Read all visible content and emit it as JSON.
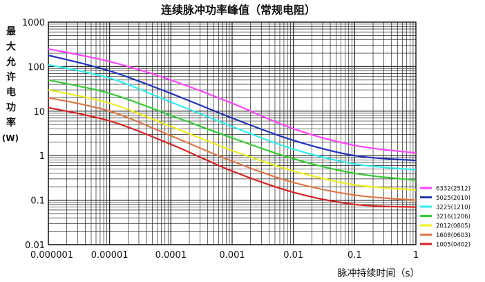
{
  "chart_data": {
    "type": "line",
    "title": "连续脉冲功率峰值（常规电阻）",
    "xlabel": "脉冲持续时间（s）",
    "ylabel_chars": [
      "最",
      "大",
      "允",
      "许",
      "电",
      "功",
      "率",
      "(W)"
    ],
    "x_scale": "log",
    "y_scale": "log",
    "xlim": [
      1e-06,
      1
    ],
    "ylim": [
      0.01,
      1000
    ],
    "x_ticks": [
      {
        "value": 1e-06,
        "label": "0.000001"
      },
      {
        "value": 1e-05,
        "label": "0.00001"
      },
      {
        "value": 0.0001,
        "label": "0.0001"
      },
      {
        "value": 0.001,
        "label": "0.001"
      },
      {
        "value": 0.01,
        "label": "0.01"
      },
      {
        "value": 0.1,
        "label": "0.1"
      },
      {
        "value": 1,
        "label": "1"
      }
    ],
    "y_ticks": [
      {
        "value": 1000,
        "label": "1000"
      },
      {
        "value": 100,
        "label": "100"
      },
      {
        "value": 10,
        "label": "10"
      },
      {
        "value": 1,
        "label": "1"
      },
      {
        "value": 0.1,
        "label": "0.1"
      },
      {
        "value": 0.01,
        "label": "0.01"
      }
    ],
    "grid": true,
    "legend_position": "right",
    "x": [
      1e-06,
      1e-05,
      0.0001,
      0.001,
      0.01,
      0.1,
      1
    ],
    "series": [
      {
        "name": "6332(2512)",
        "color": "#ff44ff",
        "values": [
          250,
          130,
          50,
          15,
          4,
          1.7,
          1.15
        ]
      },
      {
        "name": "5025(2010)",
        "color": "#2233bb",
        "values": [
          180,
          80,
          25,
          7,
          2.2,
          1.0,
          0.78
        ]
      },
      {
        "name": "3225(1210)",
        "color": "#33eeee",
        "values": [
          110,
          55,
          16,
          4.5,
          1.4,
          0.65,
          0.48
        ]
      },
      {
        "name": "3216(1206)",
        "color": "#33cc33",
        "values": [
          50,
          25,
          8,
          2.5,
          0.85,
          0.4,
          0.28
        ]
      },
      {
        "name": "2012(0805)",
        "color": "#eeee22",
        "values": [
          30,
          15,
          4.5,
          1.3,
          0.45,
          0.22,
          0.17
        ]
      },
      {
        "name": "1608(0603)",
        "color": "#dd7744",
        "values": [
          20,
          10,
          2.8,
          0.75,
          0.25,
          0.13,
          0.1
        ]
      },
      {
        "name": "1005(0402)",
        "color": "#dd2222",
        "values": [
          12,
          6,
          1.8,
          0.45,
          0.15,
          0.08,
          0.07
        ]
      }
    ]
  }
}
